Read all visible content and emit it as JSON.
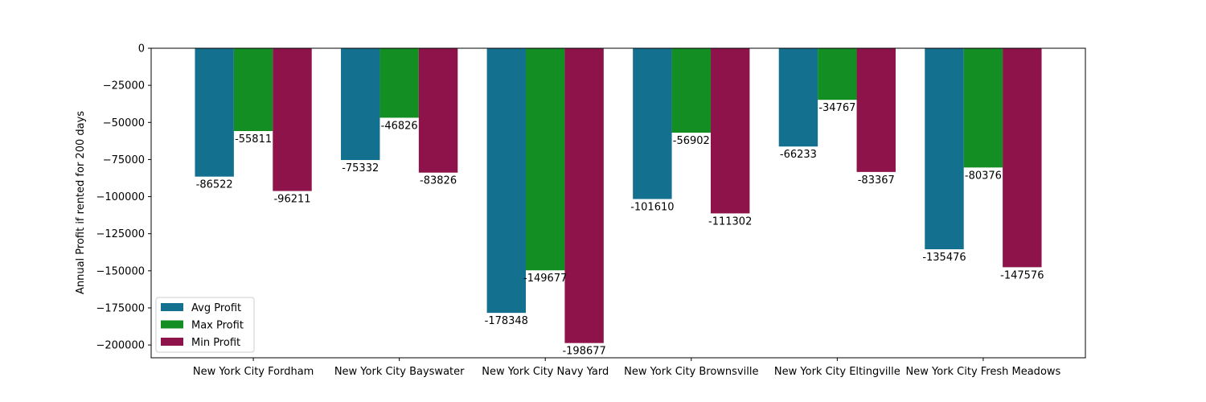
{
  "chart_data": {
    "type": "bar",
    "title": "",
    "xlabel": "",
    "ylabel": "Annual Profit if rented for 200 days",
    "categories": [
      "New York City Fordham",
      "New York City Bayswater",
      "New York City Navy Yard",
      "New York City Brownsville",
      "New York City Eltingville",
      "New York City Fresh Meadows"
    ],
    "series": [
      {
        "name": "Avg Profit",
        "color": "#13708f",
        "values": [
          -86522,
          -75332,
          -178348,
          -101610,
          -66233,
          -135476
        ]
      },
      {
        "name": "Max Profit",
        "color": "#138e23",
        "values": [
          -55811,
          -46826,
          -149677,
          -56902,
          -34767,
          -80376
        ]
      },
      {
        "name": "Min Profit",
        "color": "#8e134a",
        "values": [
          -96211,
          -83826,
          -198677,
          -111302,
          -83367,
          -147576
        ]
      }
    ],
    "ylim": [
      -208610,
      0
    ],
    "yticks": [
      0,
      -25000,
      -50000,
      -75000,
      -100000,
      -125000,
      -150000,
      -175000,
      -200000
    ],
    "ytick_labels": [
      "0",
      "−25000",
      "−50000",
      "−75000",
      "−100000",
      "−125000",
      "−150000",
      "−175000",
      "−200000"
    ],
    "legend_position": "lower-left",
    "grid": false
  }
}
